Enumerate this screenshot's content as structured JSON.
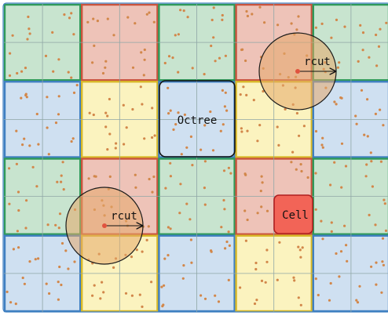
{
  "colors": {
    "green_fill": "#c8e4cf",
    "green_stroke": "#2f9a5a",
    "red_fill": "#eec3b8",
    "red_stroke": "#c9543d",
    "yellow_fill": "#fbf3bf",
    "yellow_stroke": "#d8b928",
    "blue_fill": "#cfe0f1",
    "blue_stroke": "#3f7fc1",
    "grid_line": "#8fa6a6",
    "particle": "#d2874a",
    "radius_circle_fill": "#e6a86a",
    "radius_circle_stroke": "#1a1a1a",
    "center_dot": "#e0533f",
    "cell_fill": "#f26457",
    "cell_stroke": "#b01f1f",
    "octree_stroke": "#111111"
  },
  "blocks": [
    [
      "green",
      "red",
      "green",
      "red",
      "green"
    ],
    [
      "blue",
      "yellow",
      "blue",
      "yellow",
      "blue"
    ],
    [
      "green",
      "red",
      "green",
      "red",
      "green"
    ],
    [
      "blue",
      "yellow",
      "blue",
      "yellow",
      "blue"
    ]
  ],
  "labels": {
    "octree": "Octree",
    "cell": "Cell",
    "rcut_top": "rcut",
    "rcut_bottom": "rcut"
  },
  "particles_per_subcell": 5
}
